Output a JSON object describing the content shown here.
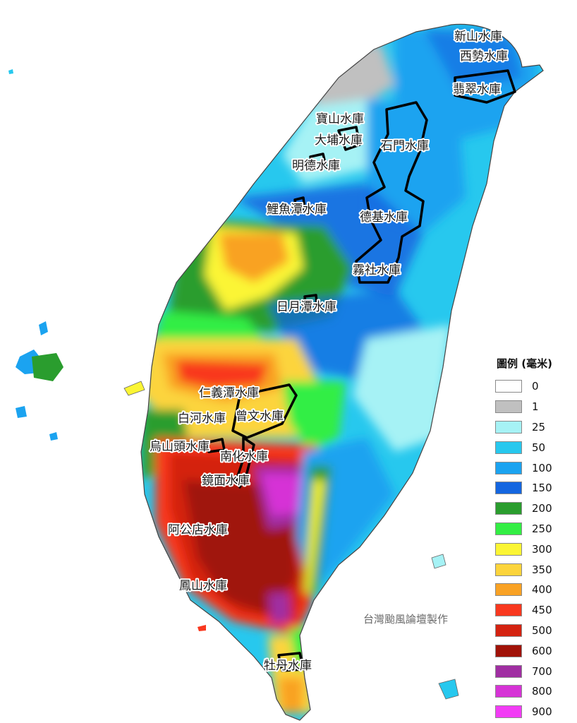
{
  "map": {
    "reservoirs": [
      {
        "label": "新山水庫"
      },
      {
        "label": "西勢水庫"
      },
      {
        "label": "翡翠水庫"
      },
      {
        "label": "寶山水庫"
      },
      {
        "label": "大埔水庫"
      },
      {
        "label": "石門水庫"
      },
      {
        "label": "明德水庫"
      },
      {
        "label": "鯉魚潭水庫"
      },
      {
        "label": "德基水庫"
      },
      {
        "label": "霧社水庫"
      },
      {
        "label": "日月潭水庫"
      },
      {
        "label": "仁義潭水庫"
      },
      {
        "label": "白河水庫"
      },
      {
        "label": "曾文水庫"
      },
      {
        "label": "烏山頭水庫"
      },
      {
        "label": "南化水庫"
      },
      {
        "label": "鏡面水庫"
      },
      {
        "label": "阿公店水庫"
      },
      {
        "label": "鳳山水庫"
      },
      {
        "label": "牡丹水庫"
      }
    ]
  },
  "legend": {
    "title": "圖例 (毫米)",
    "items": [
      {
        "value": "0",
        "color": "#ffffff"
      },
      {
        "value": "1",
        "color": "#c0c0c0"
      },
      {
        "value": "25",
        "color": "#a6f2f5"
      },
      {
        "value": "50",
        "color": "#27c8ee"
      },
      {
        "value": "100",
        "color": "#1ba3f0"
      },
      {
        "value": "150",
        "color": "#1466e0"
      },
      {
        "value": "200",
        "color": "#2a9d2e"
      },
      {
        "value": "250",
        "color": "#33ee44"
      },
      {
        "value": "300",
        "color": "#fbf534"
      },
      {
        "value": "350",
        "color": "#fcd43c"
      },
      {
        "value": "400",
        "color": "#f9a224"
      },
      {
        "value": "450",
        "color": "#f9381f"
      },
      {
        "value": "500",
        "color": "#d42210"
      },
      {
        "value": "600",
        "color": "#a01208"
      },
      {
        "value": "700",
        "color": "#a02ea2"
      },
      {
        "value": "800",
        "color": "#d633d6"
      },
      {
        "value": "900",
        "color": "#f23cf5"
      }
    ]
  },
  "credit": "台灣颱風論壇製作"
}
